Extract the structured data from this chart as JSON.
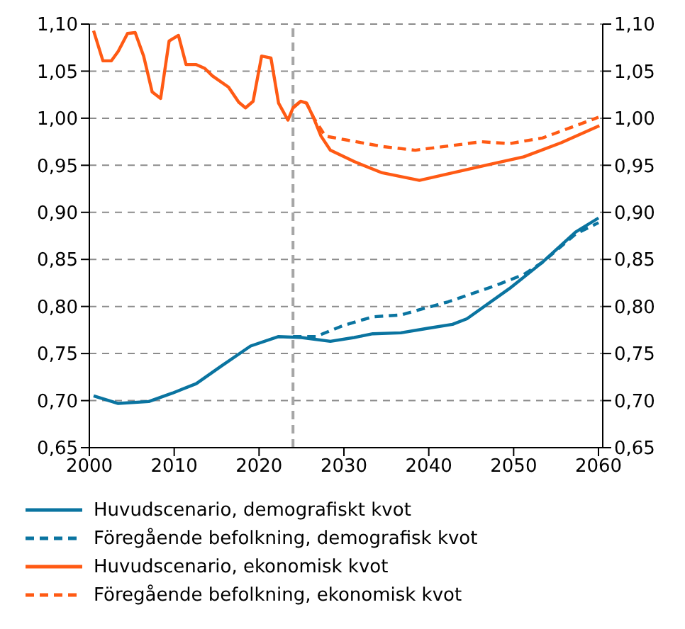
{
  "chart_data": {
    "type": "line",
    "xlim": [
      2000,
      2060.5
    ],
    "xticks": [
      2000,
      2010,
      2020,
      2030,
      2040,
      2050,
      2060
    ],
    "ylim": [
      0.65,
      1.1
    ],
    "yticks": [
      {
        "value": 0.65,
        "label": "0,65"
      },
      {
        "value": 0.7,
        "label": "0,70"
      },
      {
        "value": 0.75,
        "label": "0,75"
      },
      {
        "value": 0.8,
        "label": "0,80"
      },
      {
        "value": 0.85,
        "label": "0,85"
      },
      {
        "value": 0.9,
        "label": "0,90"
      },
      {
        "value": 0.95,
        "label": "0,95"
      },
      {
        "value": 1.0,
        "label": "1,00"
      },
      {
        "value": 1.05,
        "label": "1,05"
      },
      {
        "value": 1.1,
        "label": "1,10"
      }
    ],
    "y2lim": [
      0.65,
      1.1
    ],
    "y2ticks": [
      {
        "value": 0.65,
        "label": "0,65"
      },
      {
        "value": 0.7,
        "label": "0,70"
      },
      {
        "value": 0.75,
        "label": "0,75"
      },
      {
        "value": 0.8,
        "label": "0,80"
      },
      {
        "value": 0.85,
        "label": "0,85"
      },
      {
        "value": 0.9,
        "label": "0,90"
      },
      {
        "value": 0.95,
        "label": "0,95"
      },
      {
        "value": 1.0,
        "label": "1,00"
      },
      {
        "value": 1.05,
        "label": "1,05"
      },
      {
        "value": 1.1,
        "label": "1,10"
      }
    ],
    "grid": "y",
    "legend": "bottom",
    "marker": "none",
    "ref_lines": [
      {
        "axis": "x",
        "value": 2024,
        "color": "#a6a6a6",
        "line_style": "dashed"
      }
    ],
    "series": [
      {
        "name": "Huvudscenario, demografiskt kvot",
        "color": "#0a74a0",
        "line_style": "solid",
        "x": [
          2000.5,
          2003.4,
          2007,
          2009.8,
          2012.6,
          2015.6,
          2019,
          2022.3,
          2025,
          2028.4,
          2031.2,
          2033.4,
          2036.7,
          2040,
          2042.8,
          2044.5,
          2049.5,
          2053.4,
          2057.3,
          2060
        ],
        "values": [
          0.705,
          0.697,
          0.699,
          0.708,
          0.718,
          0.737,
          0.758,
          0.768,
          0.767,
          0.763,
          0.767,
          0.771,
          0.772,
          0.777,
          0.781,
          0.787,
          0.819,
          0.847,
          0.879,
          0.894
        ]
      },
      {
        "name": "Föregående befolkning, demografisk kvot",
        "color": "#0a74a0",
        "line_style": "dashed",
        "x": [
          2024,
          2026.7,
          2030,
          2033.4,
          2036.7,
          2042.3,
          2047.8,
          2051.2,
          2053.4,
          2057.3,
          2060
        ],
        "values": [
          0.768,
          0.768,
          0.78,
          0.789,
          0.791,
          0.805,
          0.822,
          0.834,
          0.847,
          0.877,
          0.889
        ]
      },
      {
        "name": "Huvudscenario, ekonomisk kvot",
        "color": "#ff5a14",
        "line_style": "solid",
        "x": [
          2000.5,
          2001.6,
          2002.6,
          2003.4,
          2004.5,
          2005.4,
          2006.4,
          2007.4,
          2008.4,
          2009.4,
          2010.5,
          2011.4,
          2012.6,
          2013.6,
          2014.5,
          2016.4,
          2017.6,
          2018.4,
          2019.3,
          2020.3,
          2021.4,
          2022.3,
          2023.4,
          2024,
          2024.9,
          2025.6,
          2026.4,
          2027.3,
          2028.4,
          2031.2,
          2034.5,
          2038.9,
          2046.7,
          2051.2,
          2055.6,
          2060.1
        ],
        "values": [
          1.093,
          1.061,
          1.061,
          1.071,
          1.09,
          1.091,
          1.066,
          1.028,
          1.021,
          1.082,
          1.088,
          1.057,
          1.057,
          1.053,
          1.045,
          1.033,
          1.017,
          1.011,
          1.018,
          1.066,
          1.064,
          1.016,
          0.998,
          1.011,
          1.018,
          1.016,
          1.001,
          0.981,
          0.966,
          0.954,
          0.942,
          0.934,
          0.95,
          0.959,
          0.974,
          0.992
        ]
      },
      {
        "name": "Föregående befolkning, ekonomisk kvot",
        "color": "#ff5a14",
        "line_style": "dashed",
        "x": [
          2024,
          2024.9,
          2025.6,
          2026.4,
          2027.8,
          2034.5,
          2038.4,
          2046.2,
          2049.5,
          2053.4,
          2060
        ],
        "values": [
          1.011,
          1.018,
          1.016,
          1.001,
          0.981,
          0.97,
          0.966,
          0.975,
          0.973,
          0.979,
          1.001
        ]
      }
    ]
  }
}
